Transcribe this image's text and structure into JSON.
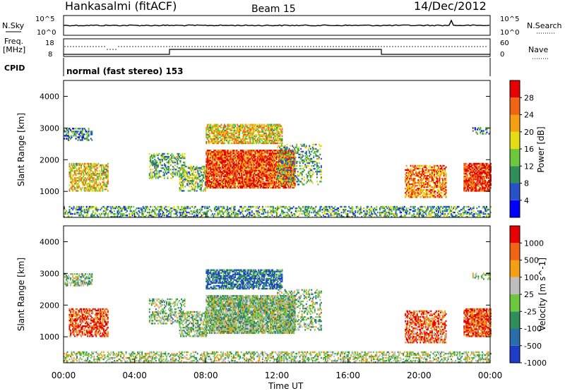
{
  "header": {
    "station": "Hankasalmi (fitACF)",
    "beam": "Beam 15",
    "date": "14/Dec/2012"
  },
  "strips": {
    "nsky_label": "N.Sky",
    "nsky_ticks": [
      "10^5",
      "10^0"
    ],
    "nsearch_label": "N.Search",
    "nsearch_ticks": [
      "10^5",
      "10^0"
    ],
    "freq_label_1": "Freq.",
    "freq_label_2": "[MHz]",
    "freq_ticks": [
      "18",
      "8"
    ],
    "nave_label": "Nave",
    "nave_ticks": [
      "60",
      "0"
    ],
    "cpid_label": "CPID",
    "cpid_value": "normal (fast stereo) 153"
  },
  "chart_data": [
    {
      "type": "heatmap",
      "title": "",
      "xlabel": "Time UT",
      "ylabel": "Slant Range [km]",
      "x_ticks": [
        "00:00",
        "04:00",
        "08:00",
        "12:00",
        "16:00",
        "20:00",
        "00:00"
      ],
      "xlim_hours": [
        0,
        24
      ],
      "ylim": [
        180,
        4500
      ],
      "y_ticks": [
        1000,
        2000,
        3000,
        4000
      ],
      "colorbar": {
        "label": "Power [dB]",
        "ticks": [
          "4",
          "8",
          "12",
          "16",
          "20",
          "24",
          "28"
        ],
        "range": [
          0,
          30
        ],
        "colors": [
          "#0000ff",
          "#2850c8",
          "#2e8f5a",
          "#6cc83c",
          "#e6dc14",
          "#f5a014",
          "#f06414",
          "#e60000"
        ]
      },
      "regions": [
        {
          "t0": 0.0,
          "t1": 24.0,
          "r0": 180,
          "r1": 500,
          "level": 0.35,
          "density": 0.45
        },
        {
          "t0": 0.3,
          "t1": 2.5,
          "r0": 1000,
          "r1": 1900,
          "level": 0.6,
          "density": 0.6
        },
        {
          "t0": 0.0,
          "t1": 1.6,
          "r0": 2600,
          "r1": 3000,
          "level": 0.3,
          "density": 0.5
        },
        {
          "t0": 4.8,
          "t1": 6.8,
          "r0": 1400,
          "r1": 2200,
          "level": 0.4,
          "density": 0.4
        },
        {
          "t0": 6.5,
          "t1": 8.0,
          "r0": 1000,
          "r1": 1800,
          "level": 0.45,
          "density": 0.55
        },
        {
          "t0": 8.0,
          "t1": 13.0,
          "r0": 1100,
          "r1": 2300,
          "level": 0.85,
          "density": 0.85
        },
        {
          "t0": 8.0,
          "t1": 12.3,
          "r0": 2500,
          "r1": 3100,
          "level": 0.6,
          "density": 0.7
        },
        {
          "t0": 12.0,
          "t1": 14.5,
          "r0": 1200,
          "r1": 2500,
          "level": 0.4,
          "density": 0.35
        },
        {
          "t0": 19.2,
          "t1": 21.5,
          "r0": 800,
          "r1": 1800,
          "level": 0.75,
          "density": 0.6
        },
        {
          "t0": 22.5,
          "t1": 24.0,
          "r0": 1000,
          "r1": 1900,
          "level": 0.9,
          "density": 0.8
        },
        {
          "t0": 23.0,
          "t1": 24.0,
          "r0": 2800,
          "r1": 3000,
          "level": 0.3,
          "density": 0.4
        }
      ]
    },
    {
      "type": "heatmap",
      "title": "",
      "xlabel": "Time UT",
      "ylabel": "Slant Range [km]",
      "x_ticks": [
        "00:00",
        "04:00",
        "08:00",
        "12:00",
        "16:00",
        "20:00",
        "00:00"
      ],
      "xlim_hours": [
        0,
        24
      ],
      "ylim": [
        180,
        4500
      ],
      "y_ticks": [
        1000,
        2000,
        3000,
        4000
      ],
      "colorbar": {
        "label": "Velocity [m s^-1]",
        "ticks": [
          "1000",
          "500",
          "100",
          "25",
          "-25",
          "-100",
          "-500",
          "-1000"
        ],
        "colors": [
          "#1e3cc8",
          "#286eaa",
          "#2e8f5a",
          "#6cc83c",
          "#bebebe",
          "#f5a014",
          "#f06414",
          "#e60000"
        ]
      },
      "regions": [
        {
          "t0": 0.0,
          "t1": 24.0,
          "r0": 180,
          "r1": 500,
          "level": 0.5,
          "density": 0.45
        },
        {
          "t0": 0.3,
          "t1": 2.5,
          "r0": 1000,
          "r1": 1900,
          "level": 0.85,
          "density": 0.6
        },
        {
          "t0": 0.0,
          "t1": 1.6,
          "r0": 2600,
          "r1": 3000,
          "level": 0.45,
          "density": 0.5
        },
        {
          "t0": 4.8,
          "t1": 6.8,
          "r0": 1400,
          "r1": 2200,
          "level": 0.45,
          "density": 0.4
        },
        {
          "t0": 6.5,
          "t1": 8.0,
          "r0": 1000,
          "r1": 1800,
          "level": 0.45,
          "density": 0.55
        },
        {
          "t0": 8.0,
          "t1": 13.0,
          "r0": 1100,
          "r1": 2300,
          "level": 0.45,
          "density": 0.85
        },
        {
          "t0": 8.0,
          "t1": 12.3,
          "r0": 2500,
          "r1": 3100,
          "level": 0.2,
          "density": 0.7
        },
        {
          "t0": 12.0,
          "t1": 14.5,
          "r0": 1200,
          "r1": 2500,
          "level": 0.45,
          "density": 0.35
        },
        {
          "t0": 19.2,
          "t1": 21.5,
          "r0": 800,
          "r1": 1800,
          "level": 0.8,
          "density": 0.6
        },
        {
          "t0": 22.5,
          "t1": 24.0,
          "r0": 1000,
          "r1": 1900,
          "level": 0.85,
          "density": 0.8
        },
        {
          "t0": 23.0,
          "t1": 24.0,
          "r0": 2800,
          "r1": 3000,
          "level": 0.45,
          "density": 0.4
        }
      ]
    }
  ]
}
